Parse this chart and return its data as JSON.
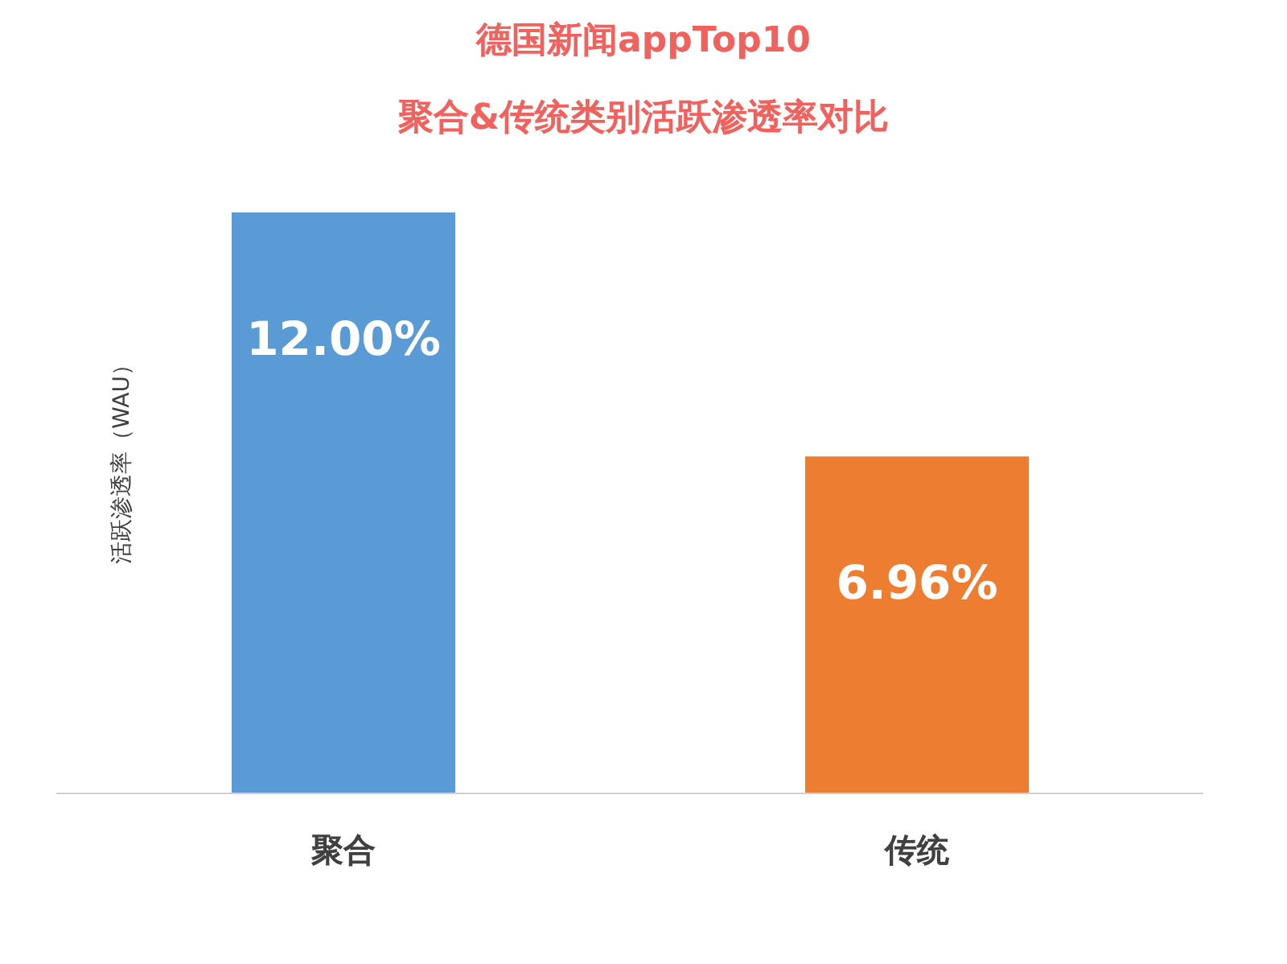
{
  "chart_data": {
    "type": "bar",
    "title": "德国新闻appTop10",
    "subtitle": "聚合&传统类别活跃渗透率对比",
    "ylabel": "活跃渗透率（WAU）",
    "categories": [
      "聚合",
      "传统"
    ],
    "values": [
      12.0,
      6.96
    ],
    "colors": [
      "#5b9bd5",
      "#ed7d31"
    ],
    "value_labels": [
      "12.00%",
      "6.96%"
    ]
  }
}
